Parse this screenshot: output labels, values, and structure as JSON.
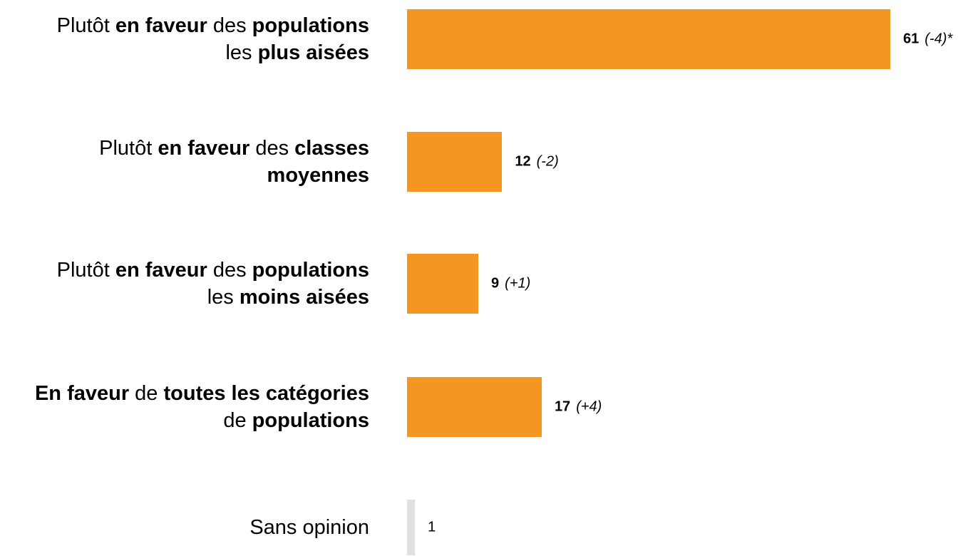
{
  "chart_data": {
    "type": "hbar",
    "categories": [
      [
        {
          "text": "Plutôt "
        },
        {
          "text": "en faveur",
          "bold": true
        },
        {
          "text": " des "
        },
        {
          "text": "populations",
          "bold": true
        },
        {
          "text": " les "
        },
        {
          "text": "plus aisées",
          "bold": true
        }
      ],
      [
        {
          "text": "Plutôt "
        },
        {
          "text": "en faveur",
          "bold": true
        },
        {
          "text": " des "
        },
        {
          "text": "classes moyennes",
          "bold": true
        }
      ],
      [
        {
          "text": "Plutôt "
        },
        {
          "text": "en faveur",
          "bold": true
        },
        {
          "text": " des "
        },
        {
          "text": "populations",
          "bold": true
        },
        {
          "text": " les "
        },
        {
          "text": "moins aisées",
          "bold": true
        }
      ],
      [
        {
          "text": "En faveur",
          "bold": true
        },
        {
          "text": " de "
        },
        {
          "text": "toutes les catégories",
          "bold": true
        },
        {
          "text": " de "
        },
        {
          "text": "populations",
          "bold": true
        }
      ],
      [
        {
          "text": "Sans opinion"
        }
      ]
    ],
    "values": [
      61,
      12,
      9,
      17,
      1
    ],
    "changes": [
      "(-4)*",
      "(-2)",
      "(+1)",
      "(+4)",
      null
    ],
    "colors": [
      "#f59623",
      "#f59623",
      "#f59623",
      "#f59623",
      "#e0e0e0"
    ],
    "value_bold": [
      true,
      true,
      true,
      true,
      false
    ]
  }
}
